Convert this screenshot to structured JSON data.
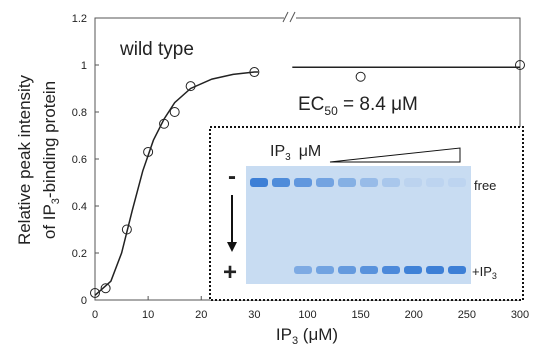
{
  "chart_data": {
    "type": "scatter",
    "y_label": {
      "line1": "Relative peak intensity",
      "line2": "of IP",
      "line2_sub": "3",
      "line2_end": "-binding protein"
    },
    "x_label": {
      "text": "IP",
      "sub": "3",
      "end": " (μM)"
    },
    "annotation": "wild type",
    "ec50": {
      "text": "EC",
      "sub": "50",
      "end": " = 8.4 μM"
    },
    "xlim": [
      0,
      300
    ],
    "ylim": [
      0,
      1.2
    ],
    "xticks": [
      0,
      10,
      20,
      30,
      100,
      150,
      200,
      250,
      300
    ],
    "yticks": [
      0,
      0.2,
      0.4,
      0.6,
      0.8,
      1,
      1.2
    ],
    "color": "#222222",
    "series": [
      {
        "type": "scatter",
        "x": [
          0,
          2,
          6,
          10,
          13,
          15,
          18,
          30,
          150,
          300
        ],
        "values": [
          0.03,
          0.05,
          0.3,
          0.63,
          0.75,
          0.8,
          0.91,
          0.97,
          0.95,
          1.0
        ]
      },
      {
        "type": "line",
        "x": [
          0,
          3,
          5,
          7,
          9,
          11,
          13,
          15,
          18,
          22,
          26,
          30,
          35,
          50,
          80,
          300
        ],
        "values": [
          0.02,
          0.08,
          0.2,
          0.38,
          0.55,
          0.68,
          0.77,
          0.84,
          0.9,
          0.94,
          0.96,
          0.97,
          0.97,
          null,
          0.99,
          0.99
        ]
      }
    ],
    "inset": {
      "ip": "IP",
      "ip_sub": "3",
      "unit": "μM",
      "minus": "-",
      "plus": "+",
      "free": "free",
      "bound": "+IP",
      "bound_sub": "3"
    }
  }
}
